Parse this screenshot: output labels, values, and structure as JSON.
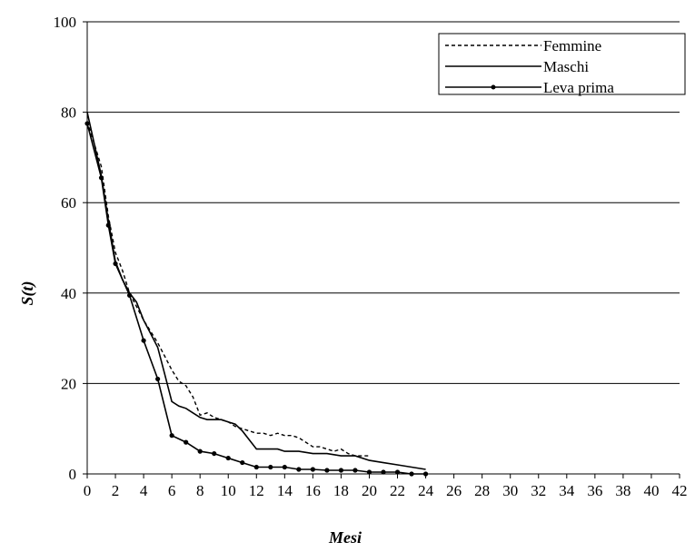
{
  "chart_data": {
    "type": "line",
    "title": "",
    "xlabel": "Mesi",
    "ylabel": "S(t)",
    "xlim": [
      0,
      42
    ],
    "ylim": [
      0,
      100
    ],
    "x_ticks": [
      "0",
      "2",
      "4",
      "6",
      "8",
      "10",
      "12",
      "14",
      "16",
      "18",
      "20",
      "22",
      "24",
      "26",
      "28",
      "30",
      "32",
      "34",
      "36",
      "38",
      "40",
      "42"
    ],
    "y_ticks": [
      "0",
      "20",
      "40",
      "60",
      "80",
      "100"
    ],
    "grid": "horizontal",
    "legend_position": "top-right",
    "series": [
      {
        "name": "Femmine",
        "style": "dotted",
        "color": "#000000",
        "x": [
          0,
          0.5,
          1,
          1.5,
          2,
          2.5,
          3,
          3.5,
          4,
          4.5,
          5,
          5.5,
          6,
          6.5,
          7,
          7.5,
          8,
          8.5,
          9,
          9.5,
          10,
          10.5,
          11,
          11.5,
          12,
          12.5,
          13,
          13.5,
          14,
          14.5,
          15,
          15.5,
          16,
          16.5,
          17,
          17.5,
          18,
          18.5,
          19,
          19.5,
          20
        ],
        "values": [
          78,
          73,
          68,
          57,
          49,
          45,
          40,
          37,
          34,
          31.5,
          29,
          26,
          23,
          20.5,
          19.5,
          17,
          13,
          13.5,
          12.5,
          12,
          11.5,
          10.5,
          10,
          9.5,
          9,
          9,
          8.5,
          9,
          8.5,
          8.5,
          8,
          7,
          6,
          6,
          5.5,
          5,
          5.5,
          4.5,
          4,
          4,
          4
        ]
      },
      {
        "name": "Maschi",
        "style": "solid",
        "color": "#000000",
        "x": [
          0,
          0.5,
          1,
          1.5,
          2,
          2.5,
          3,
          3.5,
          4,
          4.5,
          5,
          5.5,
          6,
          6.5,
          7,
          7.5,
          8,
          8.5,
          9,
          9.5,
          10,
          10.5,
          11,
          11.5,
          12,
          12.5,
          13,
          13.5,
          14,
          15,
          16,
          17,
          18,
          19,
          20,
          21,
          22,
          23,
          24
        ],
        "values": [
          80,
          73,
          66,
          56,
          47,
          43,
          40,
          38,
          34,
          31,
          28,
          22,
          16,
          15,
          14.5,
          13.5,
          12.5,
          12,
          12,
          12,
          11.5,
          11,
          9.5,
          7.5,
          5.5,
          5.5,
          5.5,
          5.5,
          5,
          5,
          4.5,
          4.5,
          4,
          4,
          3,
          2.5,
          2,
          1.5,
          1
        ]
      },
      {
        "name": "Leva prima",
        "style": "solid-markers",
        "color": "#000000",
        "x": [
          0,
          1,
          1.5,
          2,
          3,
          4,
          5,
          6,
          7,
          8,
          9,
          10,
          11,
          12,
          13,
          14,
          15,
          16,
          17,
          18,
          19,
          20,
          21,
          22,
          23,
          24
        ],
        "values": [
          77.5,
          65.5,
          55,
          46.5,
          39.5,
          29.5,
          21,
          8.5,
          7,
          5,
          4.5,
          3.5,
          2.5,
          1.5,
          1.5,
          1.5,
          1,
          1,
          0.8,
          0.8,
          0.8,
          0.4,
          0.4,
          0.4,
          0,
          0
        ]
      }
    ]
  }
}
